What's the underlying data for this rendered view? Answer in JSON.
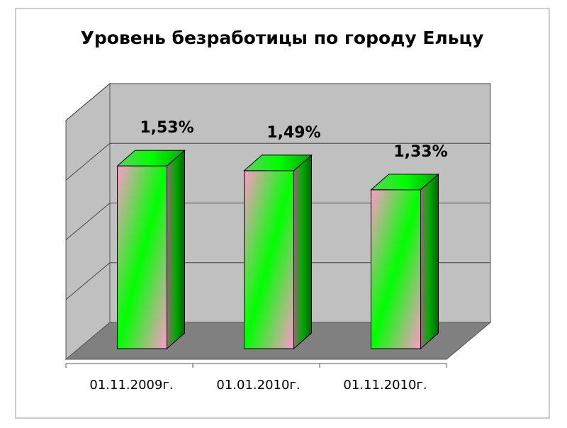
{
  "chart_data": {
    "type": "bar3d",
    "title": "Уровень безработицы по городу Ельцу",
    "categories": [
      "01.11.2009г.",
      "01.01.2010г.",
      "01.11.2010г."
    ],
    "values": [
      1.53,
      1.49,
      1.33
    ],
    "value_labels": [
      "1,53%",
      "1,49%",
      "1,33%"
    ],
    "color": "#00ff00",
    "ylim": [
      0,
      2
    ],
    "yticks": [
      0,
      0.5,
      1,
      1.5,
      2
    ],
    "grid": true
  }
}
